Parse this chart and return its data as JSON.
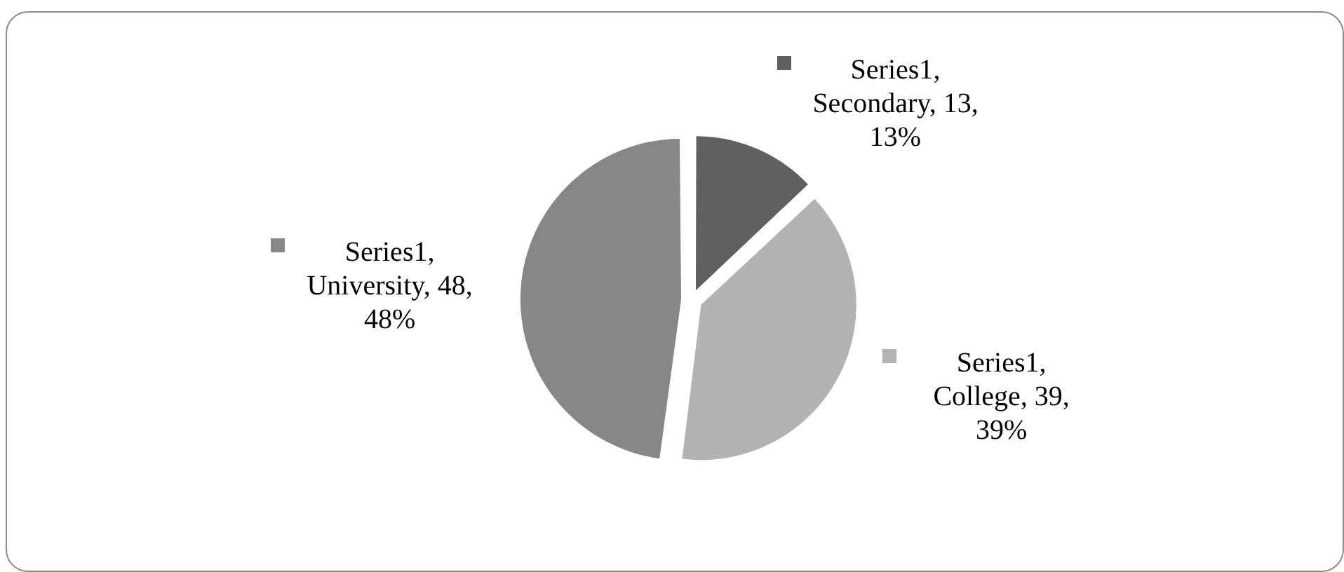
{
  "chart_data": {
    "type": "pie",
    "categories": [
      null,
      null,
      null
    ],
    "values": [
      13,
      39,
      48
    ],
    "colors": [
      "#606060",
      "#b3b3b3",
      "#878787"
    ],
    "value_labels": [
      "Series1, Secondary, 13, 13%",
      "Series1, College, 39, 39%",
      "Series1, University, 48, 48%"
    ]
  }
}
